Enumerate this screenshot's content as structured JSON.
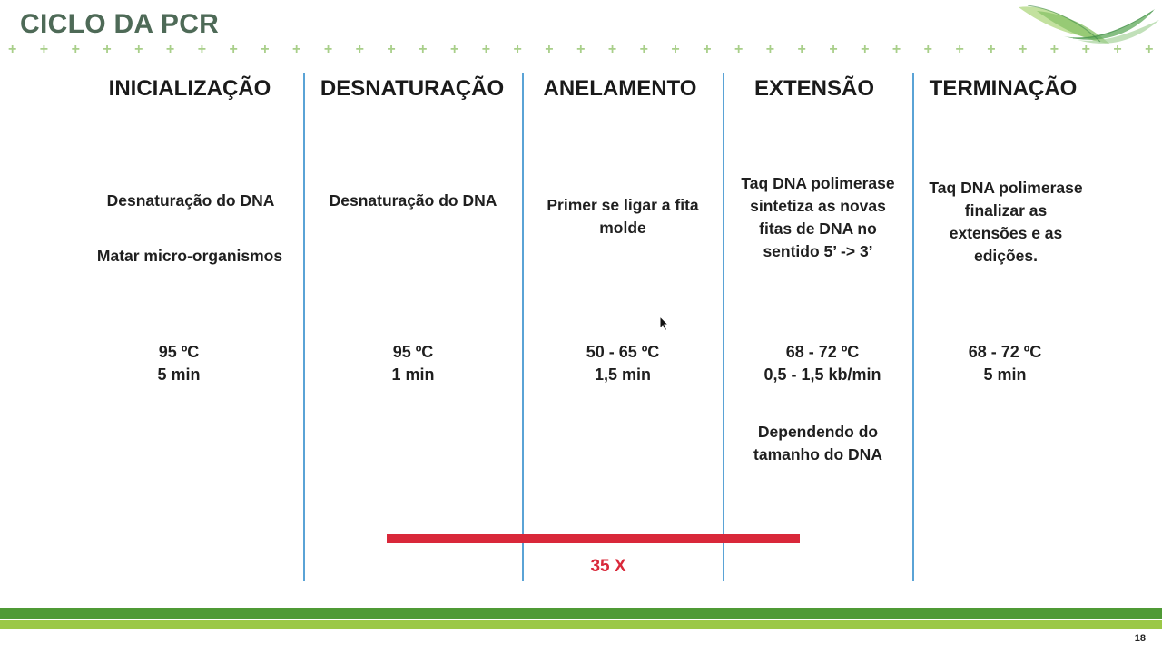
{
  "slide": {
    "title": "CICLO DA PCR",
    "page_number": "18",
    "accent_color": "#4e6a57",
    "line_color": "#5aa3d6",
    "cycle_color": "#d9283a"
  },
  "decor": {
    "plus_glyph": "+",
    "logo_icon": "green-leaf-swoosh-logo"
  },
  "columns": [
    {
      "title": "INICIALIZAÇÃO",
      "desc": [
        "Desnaturação do DNA",
        "Matar micro-organismos"
      ],
      "temp": "95 ºC",
      "time": "5 min",
      "note": []
    },
    {
      "title": "DESNATURAÇÃO",
      "desc": [
        "Desnaturação do DNA"
      ],
      "temp": "95 ºC",
      "time": "1 min",
      "note": []
    },
    {
      "title": "ANELAMENTO",
      "desc": [
        "Primer se ligar a fita",
        "molde"
      ],
      "temp": "50 - 65 ºC",
      "time": "1,5 min",
      "note": []
    },
    {
      "title": "EXTENSÃO",
      "desc": [
        "Taq DNA polimerase",
        "sintetiza as novas",
        "fitas de DNA no",
        "sentido 5’ -> 3’"
      ],
      "temp": "68 - 72 ºC",
      "time": "0,5 - 1,5 kb/min",
      "note": [
        "Dependendo do",
        "tamanho do DNA"
      ]
    },
    {
      "title": "TERMINAÇÃO",
      "desc": [
        "Taq DNA polimerase",
        "finalizar as",
        "extensões e as",
        "edições."
      ],
      "temp": "68 - 72 ºC",
      "time": "5 min",
      "note": []
    }
  ],
  "cycle": {
    "label": "35 X"
  }
}
